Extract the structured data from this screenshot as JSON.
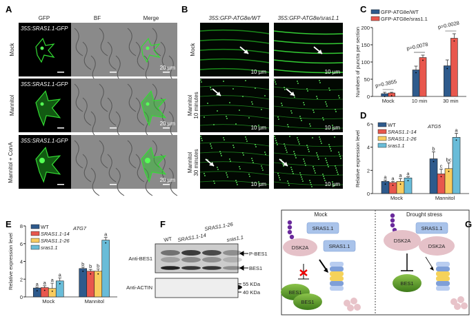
{
  "panels": {
    "A": {
      "label": "A",
      "columns": [
        "GFP",
        "BF",
        "Merge"
      ],
      "rows": [
        "Mock",
        "Mannitol",
        "Mannitol + ConA"
      ],
      "construct": "35S:SRAS1.1-GFP",
      "scale": "20 µm"
    },
    "B": {
      "label": "B",
      "columns": [
        "35S:GFP-ATG8e/WT",
        "35S:GFP-ATG8e/sras1.1"
      ],
      "rows": [
        [
          "Mock"
        ],
        [
          "Mannitol",
          "10 minutes"
        ],
        [
          "Mannitol",
          "30 minutes"
        ]
      ],
      "scale": "10 µm"
    },
    "C": {
      "label": "C"
    },
    "D": {
      "label": "D"
    },
    "E": {
      "label": "E"
    },
    "F": {
      "label": "F",
      "lanes": [
        "WT",
        "SRAS1.1-14",
        "SRAS1.1-26",
        "sras1.1"
      ],
      "antibodies": [
        "Anti-BES1",
        "Anti-ACTIN"
      ],
      "bands": [
        "P-BES1",
        "BES1"
      ],
      "markers": [
        "55 KDa",
        "40 KDa"
      ]
    },
    "G": {
      "label": "G",
      "left_title": "Mock",
      "right_title": "Drought stress",
      "proteins": {
        "sras": "SRAS1.1",
        "dsk": "DSK2A",
        "bes": "BES1"
      }
    }
  },
  "colors": {
    "wt": "#2e5a8c",
    "sras_ko_c": "#e8574d",
    "line14": "#e8574d",
    "line26": "#f9cc5e",
    "sras11": "#69bcd8",
    "gfp": "#33dd33",
    "purple": "#6a2a9c",
    "dsk": "#e5c1c8",
    "sras_box": "#a9c3ea",
    "bes": "#5c9a2a"
  },
  "chart_data": [
    {
      "type": "bar",
      "panel": "C",
      "ylabel": "Numbers of puncta per section",
      "ylim": [
        0,
        200
      ],
      "yticks": [
        0,
        50,
        100,
        150,
        200
      ],
      "categories": [
        "Mock",
        "10 min",
        "30 min"
      ],
      "series": [
        {
          "name": "GFP-ATG8e/WT",
          "values": [
            8,
            77,
            89
          ],
          "err": [
            4,
            11,
            17
          ],
          "color": "#2e5a8c"
        },
        {
          "name": "GFP-ATG8e/sras1.1",
          "values": [
            10,
            113,
            169
          ],
          "err": [
            2,
            7,
            13
          ],
          "color": "#e8574d"
        }
      ],
      "annotations": [
        "p=0.3855",
        "p=0.0078",
        "p=0.0028"
      ],
      "legend": "top-left"
    },
    {
      "type": "bar",
      "panel": "D",
      "title": "ATG5",
      "ylabel": "Relative expression level",
      "ylim": [
        0,
        6
      ],
      "yticks": [
        0,
        2,
        4,
        6
      ],
      "categories": [
        "Mock",
        "Mannitol"
      ],
      "series": [
        {
          "name": "WT",
          "values": [
            1.05,
            3.0
          ],
          "err": [
            0.1,
            0.6
          ],
          "color": "#2e5a8c",
          "letters": [
            "a",
            "b"
          ]
        },
        {
          "name": "SRAS1.1-14",
          "values": [
            0.95,
            1.7
          ],
          "err": [
            0.1,
            0.4
          ],
          "color": "#e8574d",
          "letters": [
            "a",
            "c"
          ]
        },
        {
          "name": "SRAS1.1-26",
          "values": [
            1.05,
            2.15
          ],
          "err": [
            0.25,
            0.5
          ],
          "color": "#f9cc5e",
          "letters": [
            "a",
            "bc"
          ]
        },
        {
          "name": "sras1.1",
          "values": [
            1.35,
            4.85
          ],
          "err": [
            0.1,
            0.35
          ],
          "color": "#69bcd8",
          "letters": [
            "a",
            "a"
          ]
        }
      ],
      "legend": "top-left"
    },
    {
      "type": "bar",
      "panel": "E",
      "title": "ATG7",
      "ylabel": "Relative expression level",
      "ylim": [
        0,
        8
      ],
      "yticks": [
        0,
        2,
        4,
        6,
        8
      ],
      "categories": [
        "Mock",
        "Mannitol"
      ],
      "series": [
        {
          "name": "WT",
          "values": [
            1.0,
            3.2
          ],
          "err": [
            0.1,
            0.15
          ],
          "color": "#2e5a8c",
          "letters": [
            "a",
            "b"
          ]
        },
        {
          "name": "SRAS1.1-14",
          "values": [
            1.05,
            2.9
          ],
          "err": [
            0.2,
            0.2
          ],
          "color": "#e8574d",
          "letters": [
            "a",
            "b"
          ]
        },
        {
          "name": "SRAS1.1-26",
          "values": [
            0.95,
            2.9
          ],
          "err": [
            0.6,
            0.25
          ],
          "color": "#f9cc5e",
          "letters": [
            "a",
            "b"
          ]
        },
        {
          "name": "sras1.1",
          "values": [
            1.8,
            6.4
          ],
          "err": [
            0.35,
            0.3
          ],
          "color": "#69bcd8",
          "letters": [
            "a",
            "a"
          ]
        }
      ],
      "legend": "top-left"
    }
  ]
}
